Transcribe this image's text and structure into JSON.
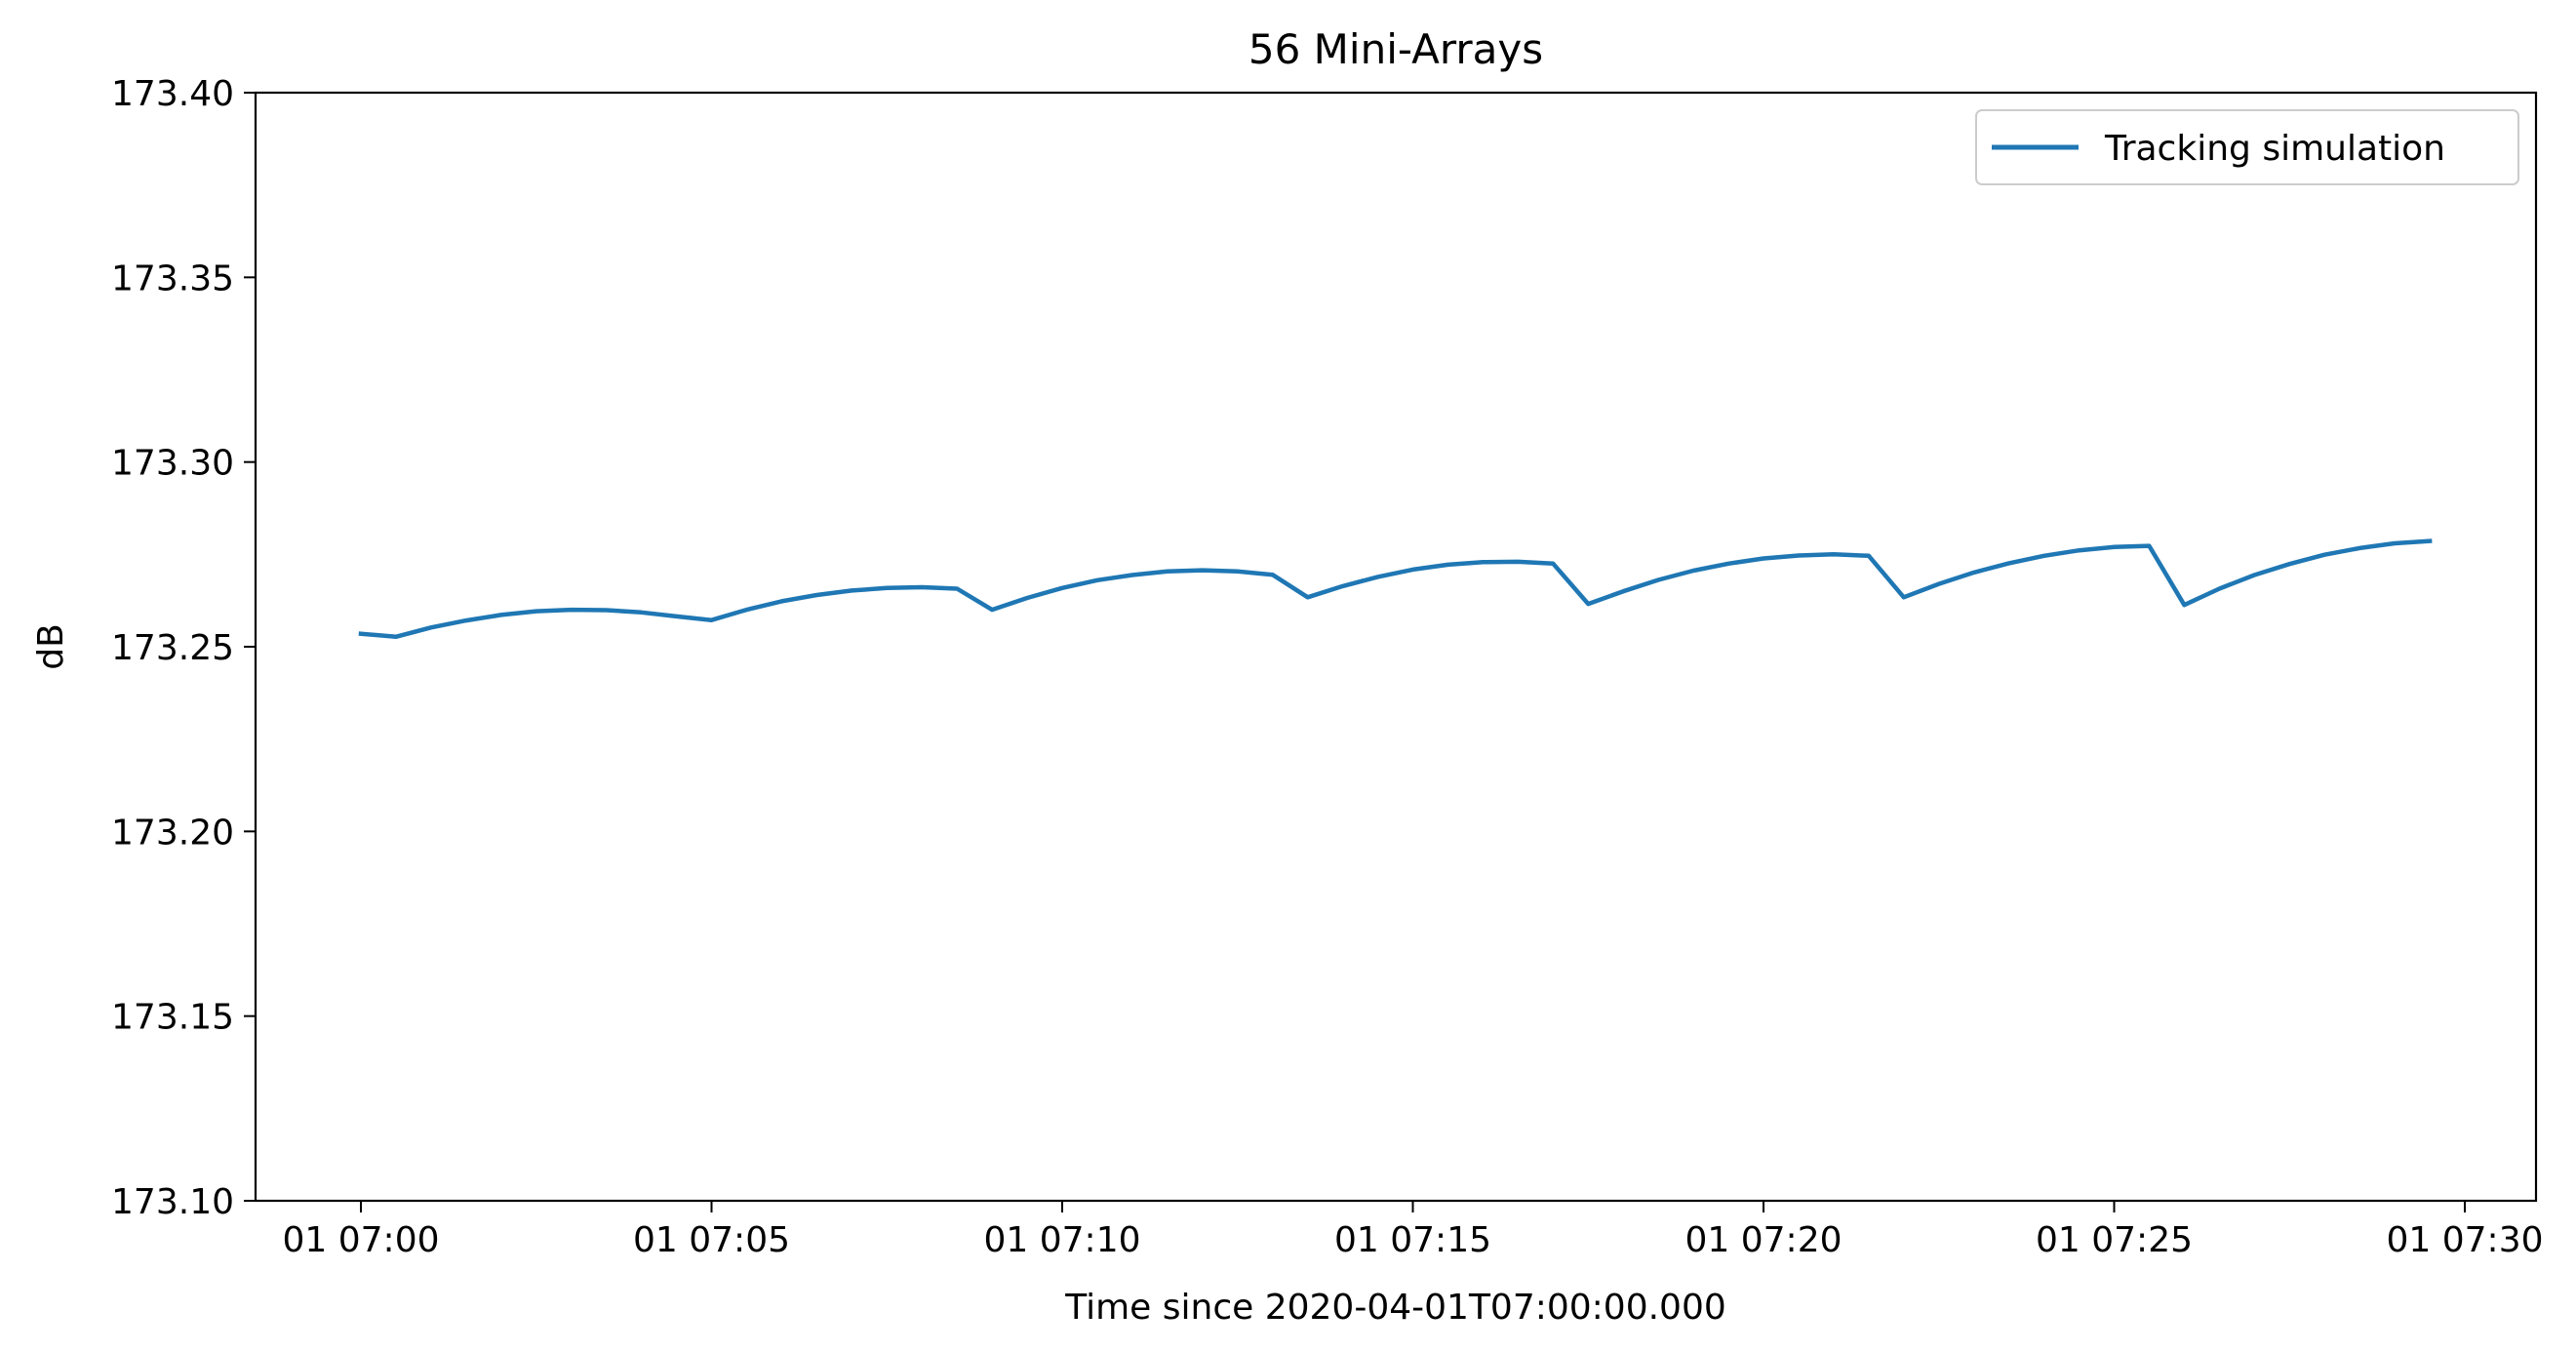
{
  "chart_data": {
    "type": "line",
    "title": "56 Mini-Arrays",
    "xlabel": "Time since 2020-04-01T07:00:00.000",
    "ylabel": "dB",
    "x_unit": "minute",
    "xlim": [
      "07:00",
      "07:30"
    ],
    "ylim": [
      173.1,
      173.4
    ],
    "grid": false,
    "legend_position": "top-right",
    "colors": {
      "series": "#1f77b4",
      "axes": "#000000",
      "legend_border": "#cccccc"
    },
    "x_ticks": [
      {
        "value": "07:00",
        "label": "01 07:00"
      },
      {
        "value": "07:05",
        "label": "01 07:05"
      },
      {
        "value": "07:10",
        "label": "01 07:10"
      },
      {
        "value": "07:15",
        "label": "01 07:15"
      },
      {
        "value": "07:20",
        "label": "01 07:20"
      },
      {
        "value": "07:25",
        "label": "01 07:25"
      },
      {
        "value": "07:30",
        "label": "01 07:30"
      }
    ],
    "y_ticks": [
      {
        "value": 173.1,
        "label": "173.10"
      },
      {
        "value": 173.15,
        "label": "173.15"
      },
      {
        "value": 173.2,
        "label": "173.20"
      },
      {
        "value": 173.25,
        "label": "173.25"
      },
      {
        "value": 173.3,
        "label": "173.30"
      },
      {
        "value": 173.35,
        "label": "173.35"
      },
      {
        "value": 173.4,
        "label": "173.40"
      }
    ],
    "series": [
      {
        "name": "Tracking simulation",
        "x": [
          "07:00:00",
          "07:00:30",
          "07:01:00",
          "07:01:30",
          "07:02:00",
          "07:02:30",
          "07:03:00",
          "07:03:30",
          "07:04:00",
          "07:04:30",
          "07:05:00",
          "07:05:30",
          "07:06:00",
          "07:06:30",
          "07:07:00",
          "07:07:30",
          "07:08:00",
          "07:08:30",
          "07:09:00",
          "07:09:30",
          "07:10:00",
          "07:10:30",
          "07:11:00",
          "07:11:30",
          "07:12:00",
          "07:12:30",
          "07:13:00",
          "07:13:30",
          "07:14:00",
          "07:14:30",
          "07:15:00",
          "07:15:30",
          "07:16:00",
          "07:16:30",
          "07:17:00",
          "07:17:30",
          "07:18:00",
          "07:18:30",
          "07:19:00",
          "07:19:30",
          "07:20:00",
          "07:20:30",
          "07:21:00",
          "07:21:30",
          "07:22:00",
          "07:22:30",
          "07:23:00",
          "07:23:30",
          "07:24:00",
          "07:24:30",
          "07:25:00",
          "07:25:30",
          "07:26:00",
          "07:26:30",
          "07:27:00",
          "07:27:30",
          "07:28:00",
          "07:28:30",
          "07:29:00",
          "07:29:30"
        ],
        "y": [
          173.2535,
          173.2527,
          173.2552,
          173.2571,
          173.2586,
          173.2596,
          173.26,
          173.2599,
          173.2593,
          173.2582,
          173.2572,
          173.26,
          173.2623,
          173.264,
          173.2652,
          173.2659,
          173.2661,
          173.2657,
          173.26,
          173.2632,
          173.2659,
          173.268,
          173.2694,
          173.2704,
          173.2707,
          173.2704,
          173.2695,
          173.2634,
          173.2664,
          173.2689,
          173.2709,
          173.2722,
          173.2729,
          173.273,
          173.2725,
          173.2616,
          173.265,
          173.2681,
          173.2706,
          173.2725,
          173.2739,
          173.2747,
          173.275,
          173.2746,
          173.2634,
          173.267,
          173.2701,
          173.2726,
          173.2746,
          173.2761,
          173.277,
          173.2773,
          173.2613,
          173.2657,
          173.2694,
          173.2724,
          173.2749,
          173.2767,
          173.278,
          173.2786
        ]
      }
    ]
  }
}
